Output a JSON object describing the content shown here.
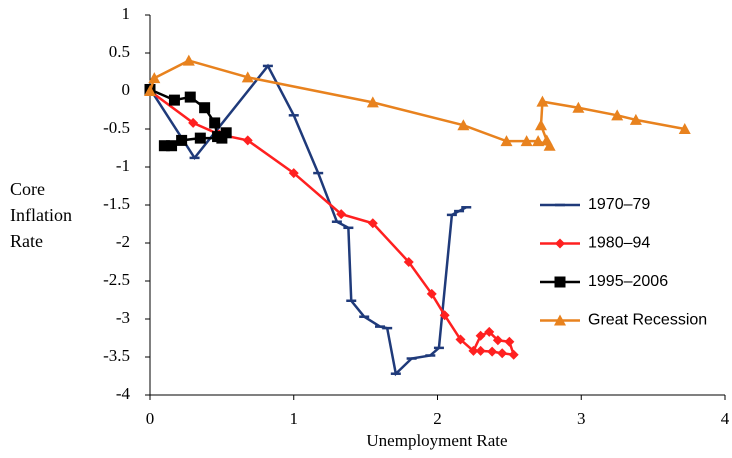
{
  "chart_data": {
    "type": "line",
    "xlabel": "Unemployment Rate",
    "ylabel": "Core Inflation Rate",
    "xlim": [
      0,
      4
    ],
    "xticks": [
      0,
      1,
      2,
      3,
      4
    ],
    "ylim": [
      -4,
      1
    ],
    "yticks": [
      -4,
      -3.5,
      -3,
      -2.5,
      -2,
      -1.5,
      -1,
      -0.5,
      0,
      0.5,
      1
    ],
    "grid": false,
    "legend": "right",
    "series": [
      {
        "name": "1970–79",
        "color": "#1f3a7a",
        "marker": "dash",
        "x": [
          0,
          0.31,
          0.82,
          1.0,
          1.17,
          1.3,
          1.38,
          1.4,
          1.49,
          1.6,
          1.65,
          1.71,
          1.82,
          1.95,
          2.01,
          2.1,
          2.15,
          2.2
        ],
        "values": [
          0.03,
          -0.88,
          0.33,
          -0.32,
          -1.08,
          -1.72,
          -1.8,
          -2.76,
          -2.97,
          -3.1,
          -3.12,
          -3.72,
          -3.52,
          -3.48,
          -3.38,
          -1.63,
          -1.58,
          -1.53
        ]
      },
      {
        "name": "1980–94",
        "color": "#ff2020",
        "marker": "diamond",
        "x": [
          0,
          0.3,
          0.48,
          0.68,
          1.0,
          1.33,
          1.55,
          1.8,
          1.96,
          2.05,
          2.16,
          2.25,
          2.3,
          2.36,
          2.42,
          2.5,
          2.53,
          2.45,
          2.38,
          2.3
        ],
        "values": [
          0,
          -0.42,
          -0.57,
          -0.65,
          -1.08,
          -1.62,
          -1.74,
          -2.25,
          -2.67,
          -2.95,
          -3.27,
          -3.42,
          -3.22,
          -3.17,
          -3.28,
          -3.3,
          -3.47,
          -3.45,
          -3.43,
          -3.42
        ]
      },
      {
        "name": "1995–2006",
        "color": "#000000",
        "marker": "square",
        "x": [
          0,
          0.17,
          0.28,
          0.38,
          0.45,
          0.47,
          0.53,
          0.5,
          0.35,
          0.22,
          0.15,
          0.1
        ],
        "values": [
          0.02,
          -0.12,
          -0.08,
          -0.22,
          -0.42,
          -0.6,
          -0.55,
          -0.62,
          -0.62,
          -0.65,
          -0.72,
          -0.72
        ]
      },
      {
        "name": "Great Recession",
        "color": "#e8821e",
        "marker": "triangle",
        "x": [
          0,
          0.03,
          0.27,
          0.68,
          1.55,
          2.18,
          2.48,
          2.62,
          2.7,
          2.78,
          2.76,
          2.72,
          2.73,
          2.98,
          3.25,
          3.38,
          3.72
        ],
        "values": [
          0,
          0.17,
          0.4,
          0.18,
          -0.15,
          -0.45,
          -0.66,
          -0.66,
          -0.66,
          -0.72,
          -0.65,
          -0.45,
          -0.14,
          -0.22,
          -0.32,
          -0.38,
          -0.5
        ]
      }
    ]
  }
}
